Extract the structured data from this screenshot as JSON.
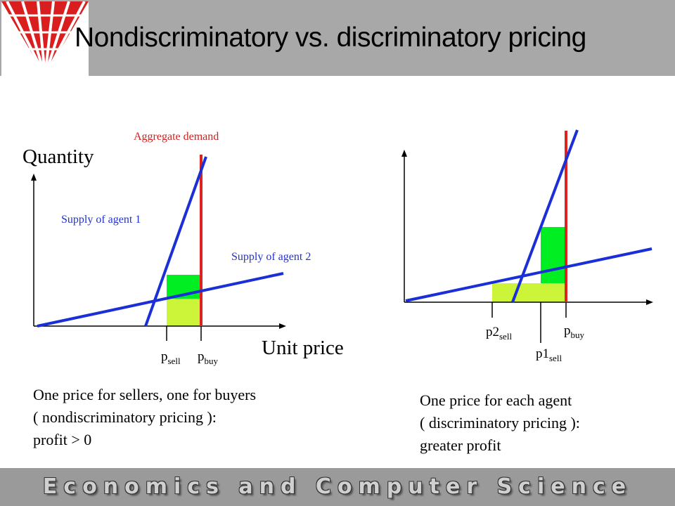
{
  "slide": {
    "title": "Nondiscriminatory vs. discriminatory pricing",
    "footer": "Economics and Computer Science"
  },
  "left_diagram": {
    "y_axis_label": "Quantity",
    "x_axis_label": "Unit price",
    "demand_label": "Aggregate demand",
    "supply1_label": "Supply of agent 1",
    "supply2_label": "Supply of agent 2",
    "p_sell": {
      "base": "p",
      "sub": "sell"
    },
    "p_buy": {
      "base": "p",
      "sub": "buy"
    },
    "caption": [
      "One price for sellers, one for buyers",
      "( nondiscriminatory pricing ):",
      "profit > 0"
    ]
  },
  "right_diagram": {
    "p2_sell": {
      "base": "p2",
      "sub": "sell"
    },
    "p1_sell": {
      "base": "p1",
      "sub": "sell"
    },
    "p_buy": {
      "base": "p",
      "sub": "buy"
    },
    "caption": [
      "One price for each agent",
      "( discriminatory pricing ):",
      "greater profit"
    ]
  },
  "colors": {
    "demand": "#dd2222",
    "supply": "#1a2fd6",
    "profit_dark": "#00ee22",
    "profit_light": "#ccf53a",
    "header": "#a8a8a8",
    "footer": "#9a9a9a"
  }
}
